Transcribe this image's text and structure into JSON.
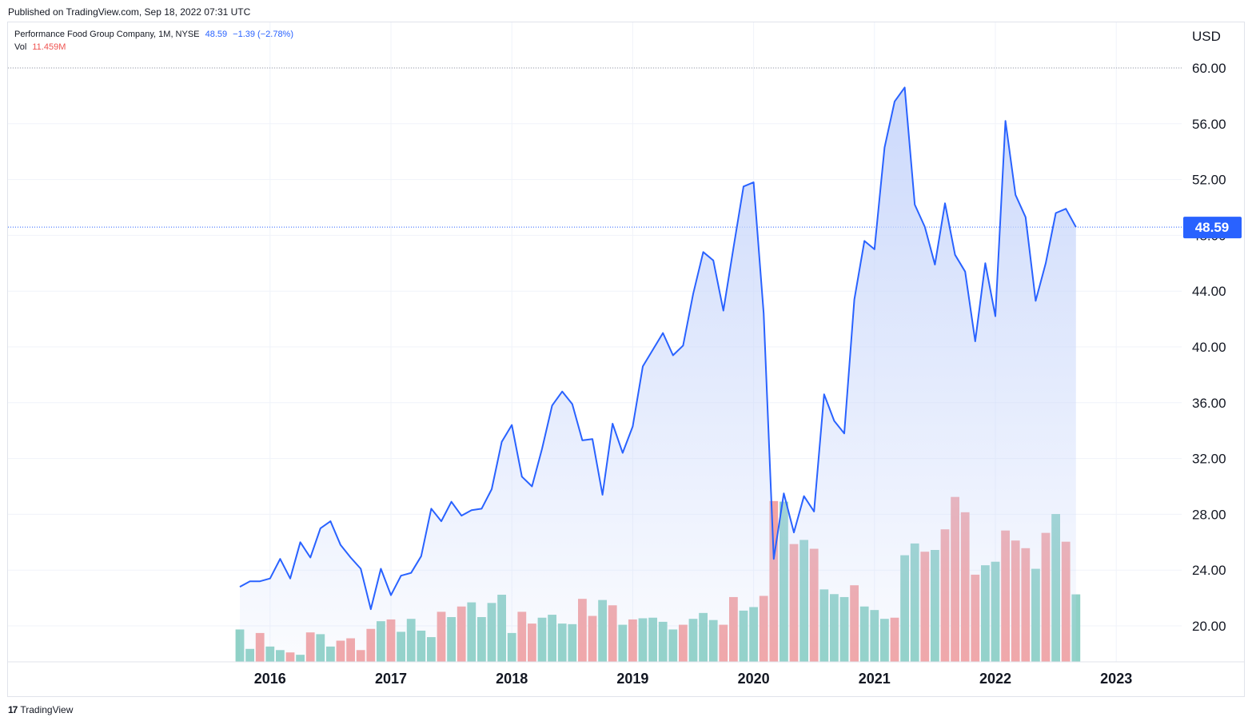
{
  "header": {
    "published": "Published on TradingView.com, Sep 18, 2022 07:31 UTC"
  },
  "legend": {
    "symbol": "Performance Food Group Company, 1M, NYSE",
    "last": "48.59",
    "change": "−1.39 (−2.78%)",
    "vol_label": "Vol",
    "vol_value": "11.459M"
  },
  "footer": {
    "brand": "TradingView",
    "logo_text": "17"
  },
  "colors": {
    "line": "#2962ff",
    "area_top": "#c9d7fb",
    "vol_up": "#8fd1c6",
    "vol_down": "#f3a3a3",
    "price_tag": "#2962ff"
  },
  "chart_data": {
    "type": "area",
    "currency": "USD",
    "last_price": 48.59,
    "last_price_label": "48.59",
    "hline_60_label": "60.00",
    "ylim": [
      16.3,
      62.3
    ],
    "y_ticks": [
      "60.00",
      "56.00",
      "52.00",
      "48.00",
      "44.00",
      "40.00",
      "36.00",
      "32.00",
      "28.00",
      "24.00",
      "20.00"
    ],
    "x_ticks": [
      "2016",
      "2017",
      "2018",
      "2019",
      "2020",
      "2021",
      "2022",
      "2023"
    ],
    "x_start": "2015-10",
    "price": [
      22.8,
      23.2,
      23.2,
      23.4,
      24.8,
      23.4,
      26.0,
      24.9,
      27.0,
      27.5,
      25.8,
      24.9,
      24.1,
      21.2,
      24.1,
      22.2,
      23.6,
      23.8,
      25.0,
      28.4,
      27.5,
      28.9,
      27.9,
      28.3,
      28.4,
      29.8,
      33.2,
      34.4,
      30.7,
      30.0,
      32.7,
      35.8,
      36.8,
      35.9,
      33.3,
      33.4,
      29.4,
      34.5,
      32.4,
      34.3,
      38.6,
      39.8,
      41.0,
      39.4,
      40.1,
      43.8,
      46.8,
      46.2,
      42.6,
      47.1,
      51.5,
      51.8,
      42.4,
      24.8,
      29.5,
      26.7,
      29.3,
      28.2,
      36.6,
      34.7,
      33.8,
      43.4,
      47.6,
      47.0,
      54.3,
      57.6,
      58.6,
      50.2,
      48.6,
      45.9,
      50.3,
      46.6,
      45.4,
      40.4,
      46.0,
      42.2,
      56.2,
      50.9,
      49.3,
      43.3,
      46.0,
      49.6,
      49.9,
      48.59
    ],
    "volume_up": [
      true,
      true,
      false,
      true,
      true,
      false,
      true,
      false,
      true,
      true,
      false,
      false,
      false,
      false,
      true,
      false,
      true,
      true,
      true,
      true,
      false,
      true,
      false,
      true,
      true,
      true,
      true,
      true,
      false,
      false,
      true,
      true,
      true,
      true,
      false,
      false,
      true,
      false,
      true,
      false,
      true,
      true,
      true,
      true,
      false,
      true,
      true,
      true,
      false,
      false,
      true,
      true,
      false,
      false,
      true,
      false,
      true,
      false,
      true,
      true,
      true,
      false,
      true,
      true,
      true,
      false,
      true,
      true,
      false,
      true,
      false,
      false,
      false,
      false,
      true,
      true,
      false,
      false,
      false,
      true,
      false,
      true,
      false,
      true
    ],
    "volume": [
      5.5,
      2.2,
      4.9,
      2.6,
      2.0,
      1.6,
      1.2,
      5.0,
      4.7,
      2.6,
      3.6,
      4.0,
      2.0,
      5.6,
      6.9,
      7.2,
      5.1,
      7.3,
      5.3,
      4.2,
      8.5,
      7.6,
      9.4,
      10.1,
      7.6,
      10.0,
      11.4,
      4.9,
      8.5,
      6.5,
      7.5,
      8.0,
      6.5,
      6.4,
      10.7,
      7.8,
      10.5,
      9.6,
      6.3,
      7.2,
      7.4,
      7.5,
      6.8,
      5.5,
      6.3,
      7.3,
      8.3,
      7.1,
      6.3,
      11.0,
      8.7,
      9.3,
      11.2,
      27.3,
      27.2,
      20.0,
      20.7,
      19.2,
      12.3,
      11.5,
      11.0,
      13.0,
      9.4,
      8.8,
      7.3,
      7.5,
      18.1,
      20.1,
      18.7,
      19.0,
      22.5,
      28.0,
      25.4,
      14.8,
      16.4,
      17.0,
      22.3,
      20.6,
      19.3,
      15.8,
      21.9,
      25.1,
      20.4,
      11.459
    ],
    "volume_scale_max": 28.5
  }
}
